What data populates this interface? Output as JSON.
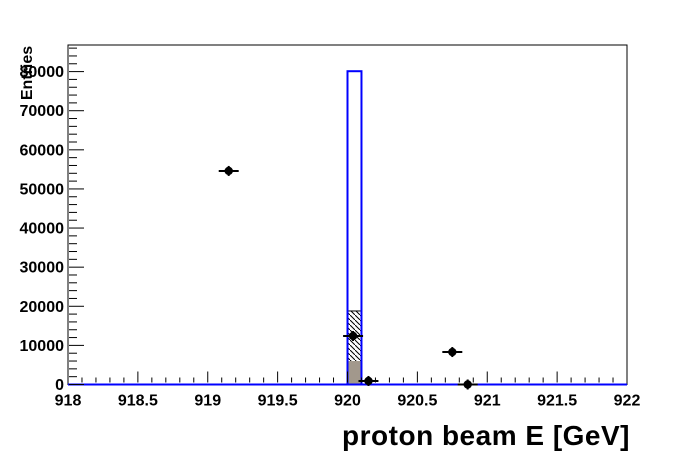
{
  "window": {
    "background": "#ffffff"
  },
  "chart_data": {
    "type": "bar",
    "subtype": "root-histogram-with-scatter-points",
    "title": "",
    "xlabel": "proton beam E [GeV]",
    "ylabel": "Entries",
    "xlim": [
      918,
      922
    ],
    "ylim": [
      0,
      86800
    ],
    "grid": false,
    "legend": false,
    "axis_color": "#000000",
    "x_major_tick_values": [
      918,
      918.5,
      919,
      919.5,
      920,
      920.5,
      921,
      921.5,
      922
    ],
    "x_major_tick_labels": [
      "918",
      "918.5",
      "919",
      "919.5",
      "920",
      "920.5",
      "921",
      "921.5",
      "922"
    ],
    "x_minor_tick_step": 0.1,
    "y_major_tick_values": [
      0,
      10000,
      20000,
      30000,
      40000,
      50000,
      60000,
      70000,
      80000
    ],
    "y_major_tick_labels": [
      "0",
      "10000",
      "20000",
      "30000",
      "40000",
      "50000",
      "60000",
      "70000",
      "80000"
    ],
    "y_minor_tick_step": 2000,
    "histogram": {
      "bin_width_gev": 0.1,
      "baseline_color": "#0000ff",
      "components": [
        {
          "name": "hatched-band",
          "style": "hatch",
          "hatch_color": "#000000",
          "bins": [
            {
              "x0": 920.0,
              "x1": 920.1,
              "y0": 6000,
              "y1": 18800
            }
          ]
        },
        {
          "name": "gray-filled-band",
          "style": "solid",
          "fill_color": "#a2988c",
          "bins": [
            {
              "x0": 920.0,
              "x1": 920.1,
              "y0": 0,
              "y1": 6000
            }
          ]
        },
        {
          "name": "open-blue-histogram",
          "style": "open",
          "line_color": "#0000ff",
          "line_width": 2,
          "bins": [
            {
              "x0": 920.0,
              "x1": 920.1,
              "y0": 0,
              "y1": 80100
            }
          ]
        }
      ]
    },
    "points": {
      "marker": "filled-circle",
      "marker_color": "#000000",
      "xerr": 0.05,
      "data": [
        {
          "x": 919.15,
          "y": 54600
        },
        {
          "x": 920.04,
          "y": 12400
        },
        {
          "x": 920.15,
          "y": 900
        },
        {
          "x": 920.75,
          "y": 8300
        },
        {
          "x": 920.86,
          "y": 0
        }
      ]
    }
  }
}
